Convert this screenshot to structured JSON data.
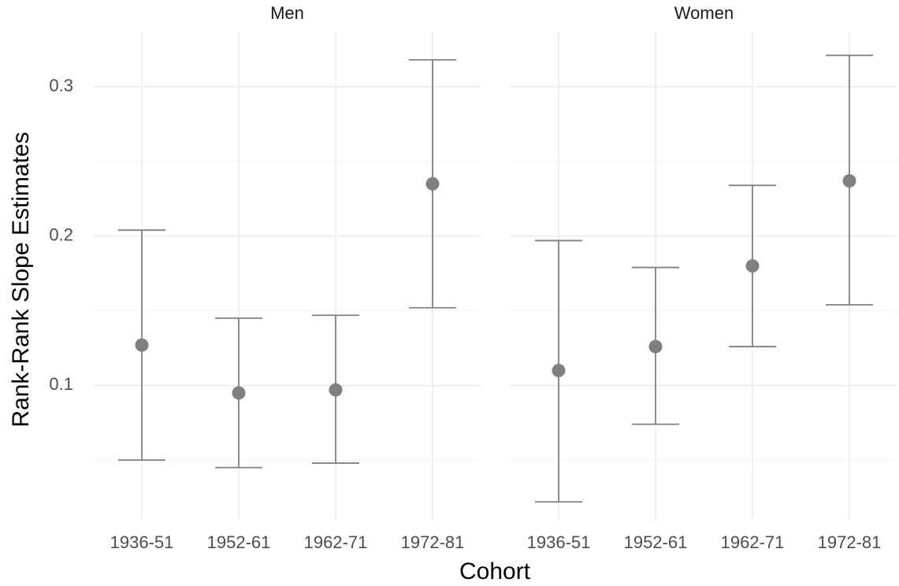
{
  "chart_data": {
    "type": "errorbar",
    "ylabel": "Rank-Rank Slope Estimates",
    "xlabel": "Cohort",
    "ylim": [
      0.01,
      0.337
    ],
    "yticks": [
      0.1,
      0.2,
      0.3
    ],
    "grid": true,
    "color": "#808080",
    "categories": [
      "1936-51",
      "1952-61",
      "1962-71",
      "1972-81"
    ],
    "panels": [
      {
        "title": "Men",
        "values": [
          0.127,
          0.095,
          0.097,
          0.235
        ],
        "lower": [
          0.05,
          0.045,
          0.048,
          0.152
        ],
        "upper": [
          0.204,
          0.145,
          0.147,
          0.318
        ]
      },
      {
        "title": "Women",
        "values": [
          0.11,
          0.126,
          0.18,
          0.237
        ],
        "lower": [
          0.022,
          0.074,
          0.126,
          0.154
        ],
        "upper": [
          0.197,
          0.179,
          0.234,
          0.321
        ]
      }
    ]
  }
}
